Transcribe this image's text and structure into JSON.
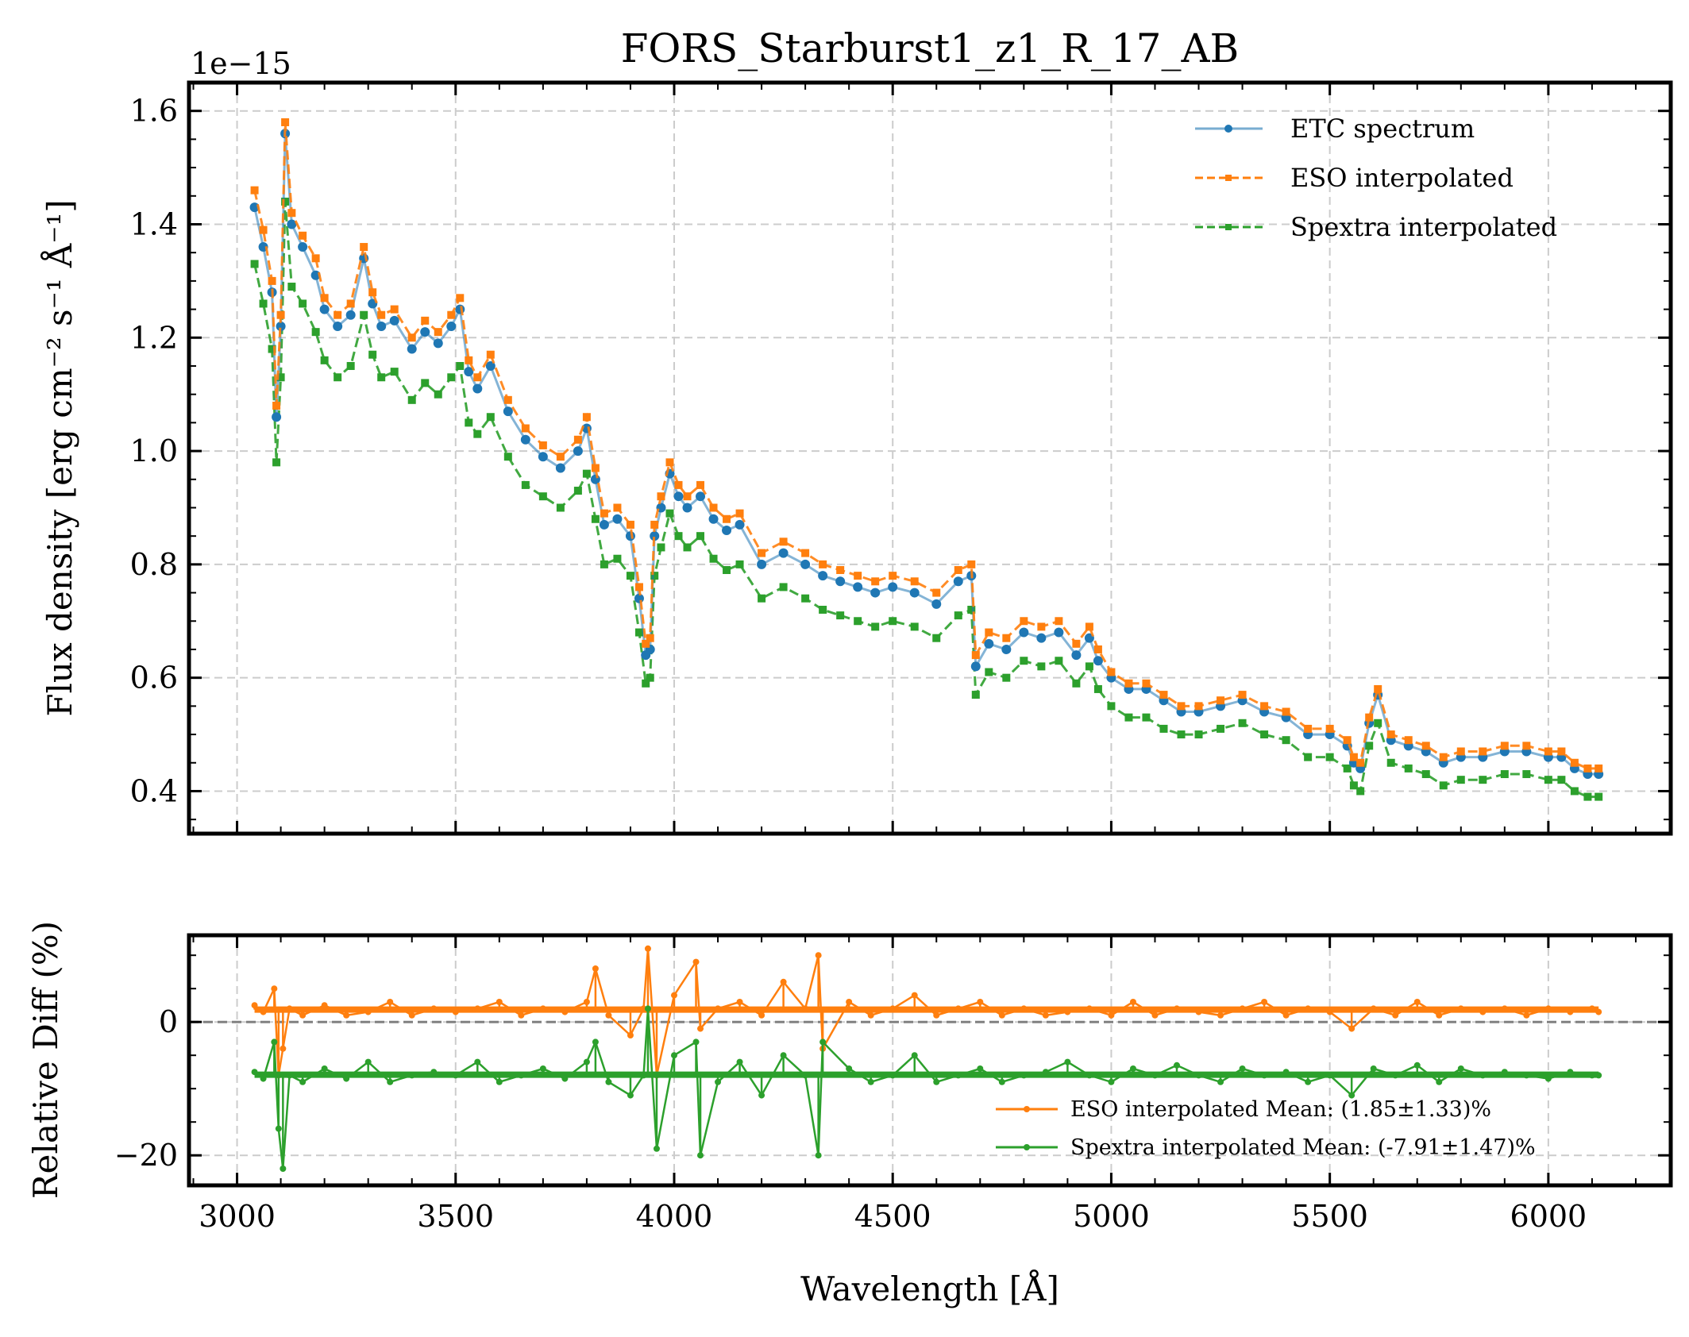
{
  "chart_data": [
    {
      "type": "line",
      "panel": "spectrum",
      "title": "FORS_Starburst1_z1_R_17_AB",
      "xlabel": "Wavelength [Å]",
      "ylabel": "Flux density [erg cm⁻² s⁻¹ Å⁻¹]",
      "y_offset_label": "1e−15",
      "xlim": [
        2890,
        6280
      ],
      "ylim": [
        0.325,
        1.65
      ],
      "y_ticks": [
        0.4,
        0.6,
        0.8,
        1.0,
        1.2,
        1.4,
        1.6
      ],
      "y_tick_labels": [
        "0.4",
        "0.6",
        "0.8",
        "1.0",
        "1.2",
        "1.4",
        "1.6"
      ],
      "x_ticks": [
        3000,
        3500,
        4000,
        4500,
        5000,
        5500,
        6000
      ],
      "grid": true,
      "legend_position": "top-right",
      "x": [
        3040,
        3060,
        3080,
        3090,
        3100,
        3110,
        3125,
        3150,
        3180,
        3200,
        3230,
        3260,
        3290,
        3310,
        3330,
        3360,
        3400,
        3430,
        3460,
        3490,
        3510,
        3530,
        3550,
        3580,
        3620,
        3660,
        3700,
        3740,
        3780,
        3800,
        3820,
        3840,
        3870,
        3900,
        3920,
        3935,
        3945,
        3955,
        3970,
        3990,
        4010,
        4030,
        4060,
        4090,
        4120,
        4150,
        4200,
        4250,
        4300,
        4340,
        4380,
        4420,
        4460,
        4500,
        4550,
        4600,
        4650,
        4680,
        4690,
        4720,
        4760,
        4800,
        4840,
        4880,
        4920,
        4950,
        4970,
        5000,
        5040,
        5080,
        5120,
        5160,
        5200,
        5250,
        5300,
        5350,
        5400,
        5450,
        5500,
        5540,
        5555,
        5570,
        5590,
        5610,
        5640,
        5680,
        5720,
        5760,
        5800,
        5850,
        5900,
        5950,
        6000,
        6030,
        6060,
        6090,
        6115
      ],
      "series": [
        {
          "name": "ETC spectrum",
          "color": "#1f77b4",
          "values": [
            1.43,
            1.36,
            1.28,
            1.06,
            1.22,
            1.56,
            1.4,
            1.36,
            1.31,
            1.25,
            1.22,
            1.24,
            1.34,
            1.26,
            1.22,
            1.23,
            1.18,
            1.21,
            1.19,
            1.22,
            1.25,
            1.14,
            1.11,
            1.15,
            1.07,
            1.02,
            0.99,
            0.97,
            1.0,
            1.04,
            0.95,
            0.87,
            0.88,
            0.85,
            0.74,
            0.64,
            0.65,
            0.85,
            0.9,
            0.96,
            0.92,
            0.9,
            0.92,
            0.88,
            0.86,
            0.87,
            0.8,
            0.82,
            0.8,
            0.78,
            0.77,
            0.76,
            0.75,
            0.76,
            0.75,
            0.73,
            0.77,
            0.78,
            0.62,
            0.66,
            0.65,
            0.68,
            0.67,
            0.68,
            0.64,
            0.67,
            0.63,
            0.6,
            0.58,
            0.58,
            0.56,
            0.54,
            0.54,
            0.55,
            0.56,
            0.54,
            0.53,
            0.5,
            0.5,
            0.48,
            0.45,
            0.44,
            0.52,
            0.57,
            0.49,
            0.48,
            0.47,
            0.45,
            0.46,
            0.46,
            0.47,
            0.47,
            0.46,
            0.46,
            0.44,
            0.43,
            0.43
          ]
        },
        {
          "name": "ESO interpolated",
          "color": "#ff7f0e",
          "values": [
            1.46,
            1.39,
            1.3,
            1.08,
            1.24,
            1.58,
            1.42,
            1.38,
            1.34,
            1.27,
            1.24,
            1.26,
            1.36,
            1.28,
            1.24,
            1.25,
            1.2,
            1.23,
            1.21,
            1.24,
            1.27,
            1.16,
            1.13,
            1.17,
            1.09,
            1.04,
            1.01,
            0.99,
            1.02,
            1.06,
            0.97,
            0.89,
            0.9,
            0.87,
            0.76,
            0.66,
            0.67,
            0.87,
            0.92,
            0.98,
            0.94,
            0.92,
            0.94,
            0.9,
            0.88,
            0.89,
            0.82,
            0.84,
            0.82,
            0.8,
            0.79,
            0.78,
            0.77,
            0.78,
            0.77,
            0.75,
            0.79,
            0.8,
            0.64,
            0.68,
            0.67,
            0.7,
            0.69,
            0.7,
            0.66,
            0.69,
            0.65,
            0.61,
            0.59,
            0.59,
            0.57,
            0.55,
            0.55,
            0.56,
            0.57,
            0.55,
            0.54,
            0.51,
            0.51,
            0.49,
            0.46,
            0.45,
            0.53,
            0.58,
            0.5,
            0.49,
            0.48,
            0.46,
            0.47,
            0.47,
            0.48,
            0.48,
            0.47,
            0.47,
            0.45,
            0.44,
            0.44
          ]
        },
        {
          "name": "Spextra interpolated",
          "color": "#2ca02c",
          "values": [
            1.33,
            1.26,
            1.18,
            0.98,
            1.13,
            1.44,
            1.29,
            1.26,
            1.21,
            1.16,
            1.13,
            1.15,
            1.24,
            1.17,
            1.13,
            1.14,
            1.09,
            1.12,
            1.1,
            1.13,
            1.15,
            1.05,
            1.03,
            1.06,
            0.99,
            0.94,
            0.92,
            0.9,
            0.93,
            0.96,
            0.88,
            0.8,
            0.81,
            0.78,
            0.68,
            0.59,
            0.6,
            0.78,
            0.83,
            0.89,
            0.85,
            0.83,
            0.85,
            0.81,
            0.79,
            0.8,
            0.74,
            0.76,
            0.74,
            0.72,
            0.71,
            0.7,
            0.69,
            0.7,
            0.69,
            0.67,
            0.71,
            0.72,
            0.57,
            0.61,
            0.6,
            0.63,
            0.62,
            0.63,
            0.59,
            0.62,
            0.58,
            0.55,
            0.53,
            0.53,
            0.51,
            0.5,
            0.5,
            0.51,
            0.52,
            0.5,
            0.49,
            0.46,
            0.46,
            0.44,
            0.41,
            0.4,
            0.48,
            0.52,
            0.45,
            0.44,
            0.43,
            0.41,
            0.42,
            0.42,
            0.43,
            0.43,
            0.42,
            0.42,
            0.4,
            0.39,
            0.39
          ]
        }
      ]
    },
    {
      "type": "line",
      "panel": "relative-diff",
      "xlabel": "Wavelength [Å]",
      "ylabel": "Relative Diff (%)",
      "xlim": [
        2890,
        6280
      ],
      "ylim": [
        -24.5,
        13
      ],
      "y_ticks": [
        -20,
        0
      ],
      "y_tick_labels": [
        "−20",
        "0"
      ],
      "x_ticks": [
        3000,
        3500,
        4000,
        4500,
        5000,
        5500,
        6000
      ],
      "x_tick_labels": [
        "3000",
        "3500",
        "4000",
        "4500",
        "5000",
        "5500",
        "6000"
      ],
      "reference_line": 0,
      "grid": true,
      "legend_position": "bottom-right",
      "x": [
        3040,
        3060,
        3085,
        3095,
        3105,
        3120,
        3150,
        3200,
        3250,
        3300,
        3350,
        3400,
        3450,
        3500,
        3550,
        3600,
        3650,
        3700,
        3750,
        3800,
        3820,
        3850,
        3900,
        3930,
        3940,
        3960,
        4000,
        4050,
        4060,
        4100,
        4150,
        4200,
        4250,
        4300,
        4330,
        4340,
        4400,
        4450,
        4500,
        4550,
        4600,
        4650,
        4700,
        4750,
        4800,
        4850,
        4900,
        4950,
        5000,
        5050,
        5100,
        5150,
        5200,
        5250,
        5300,
        5350,
        5400,
        5450,
        5500,
        5550,
        5600,
        5650,
        5700,
        5750,
        5800,
        5850,
        5900,
        5950,
        6000,
        6050,
        6100,
        6115
      ],
      "series": [
        {
          "name": "ESO interpolated Mean: (1.85±1.33)%",
          "color": "#ff7f0e",
          "values": [
            2.5,
            1.5,
            5.0,
            -8.0,
            -4.0,
            2.0,
            1.0,
            2.5,
            1.0,
            1.5,
            3.0,
            1.0,
            2.0,
            1.5,
            2.0,
            3.0,
            1.0,
            2.0,
            1.5,
            3.0,
            8.0,
            1.0,
            -2.0,
            2.0,
            11.0,
            -8.0,
            4.0,
            9.0,
            -1.0,
            2.0,
            3.0,
            1.0,
            6.0,
            2.0,
            10.0,
            -4.0,
            3.0,
            1.0,
            2.0,
            4.0,
            1.0,
            2.0,
            3.0,
            1.0,
            2.0,
            1.0,
            1.5,
            2.0,
            1.0,
            3.0,
            1.0,
            2.0,
            1.5,
            1.0,
            2.0,
            3.0,
            1.0,
            2.0,
            1.5,
            -1.0,
            2.0,
            1.0,
            3.0,
            1.0,
            2.0,
            1.5,
            2.0,
            1.0,
            2.0,
            1.5,
            2.0,
            1.5
          ]
        },
        {
          "name": "Spextra interpolated Mean: (-7.91±1.47)%",
          "color": "#2ca02c",
          "values": [
            -7.5,
            -8.5,
            -3.0,
            -16.0,
            -22.0,
            -8.0,
            -9.0,
            -7.0,
            -8.5,
            -6.0,
            -9.0,
            -8.0,
            -7.5,
            -8.0,
            -6.0,
            -9.0,
            -8.0,
            -7.0,
            -8.5,
            -6.0,
            -3.0,
            -9.0,
            -11.0,
            -8.0,
            2.0,
            -19.0,
            -5.0,
            -3.0,
            -20.0,
            -9.0,
            -6.0,
            -11.0,
            -5.0,
            -8.0,
            -20.0,
            -3.0,
            -7.0,
            -9.0,
            -8.0,
            -5.0,
            -9.0,
            -8.0,
            -7.0,
            -9.0,
            -8.0,
            -7.5,
            -6.0,
            -8.0,
            -9.0,
            -7.0,
            -8.0,
            -6.5,
            -8.0,
            -9.0,
            -7.0,
            -8.0,
            -7.5,
            -9.0,
            -8.0,
            -11.0,
            -7.0,
            -8.0,
            -6.5,
            -9.0,
            -7.0,
            -8.0,
            -7.5,
            -8.0,
            -8.5,
            -7.5,
            -8.0,
            -8.0
          ]
        }
      ]
    }
  ]
}
